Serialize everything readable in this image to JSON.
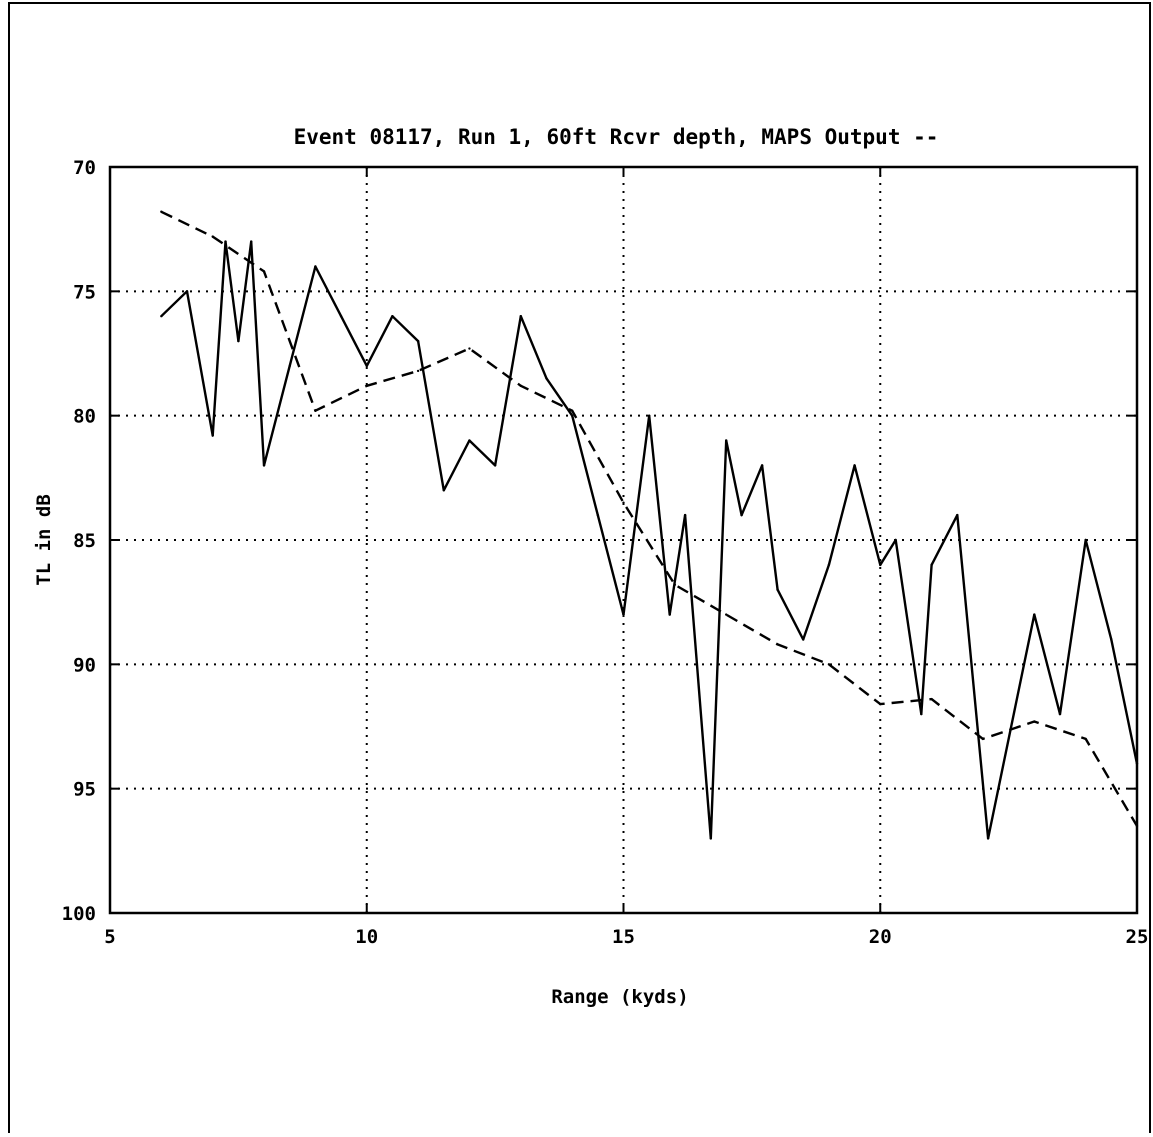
{
  "chart_data": {
    "type": "line",
    "title": "Event 08117, Run 1, 60ft Rcvr depth, MAPS Output --",
    "xlabel": "Range (kyds)",
    "ylabel": "TL in dB",
    "xlim": [
      5,
      25
    ],
    "ylim": [
      70,
      100
    ],
    "y_inverted": true,
    "grid": true,
    "x_ticks": [
      5,
      10,
      15,
      20,
      25
    ],
    "x_tick_labels": [
      "5",
      "10",
      "15",
      "20",
      "25"
    ],
    "y_ticks": [
      70,
      75,
      80,
      85,
      90,
      95,
      100
    ],
    "y_tick_labels": [
      "70",
      "75",
      "80",
      "85",
      "90",
      "95",
      "100"
    ],
    "series": [
      {
        "style": "solid",
        "x": [
          6.0,
          6.5,
          7.0,
          7.25,
          7.5,
          7.75,
          8.0,
          8.5,
          9.0,
          9.5,
          10.0,
          10.5,
          11.0,
          11.5,
          12.0,
          12.5,
          13.0,
          13.5,
          14.0,
          14.5,
          15.0,
          15.5,
          15.9,
          16.2,
          16.7,
          17.0,
          17.3,
          17.7,
          18.0,
          18.5,
          19.0,
          19.5,
          20.0,
          20.3,
          20.8,
          21.0,
          21.5,
          22.1,
          23.0,
          23.5,
          24.0,
          24.5,
          25.0
        ],
        "y": [
          76.0,
          75.0,
          80.8,
          73.0,
          77.0,
          73.0,
          82.0,
          78.0,
          74.0,
          76.0,
          78.0,
          76.0,
          77.0,
          83.0,
          81.0,
          82.0,
          76.0,
          78.5,
          80.0,
          84.0,
          88.0,
          80.0,
          88.0,
          84.0,
          97.0,
          81.0,
          84.0,
          82.0,
          87.0,
          89.0,
          86.0,
          82.0,
          86.0,
          85.0,
          92.0,
          86.0,
          84.0,
          97.0,
          88.0,
          92.0,
          85.0,
          89.0,
          94.0
        ]
      },
      {
        "style": "dashed",
        "x": [
          6.0,
          7.0,
          8.0,
          9.0,
          10.0,
          11.0,
          12.0,
          13.0,
          14.0,
          15.0,
          16.0,
          17.0,
          18.0,
          19.0,
          20.0,
          21.0,
          22.0,
          23.0,
          24.0,
          25.0
        ],
        "y": [
          71.8,
          72.8,
          74.2,
          79.8,
          78.8,
          78.2,
          77.3,
          78.8,
          79.8,
          83.5,
          86.8,
          88.0,
          89.2,
          90.0,
          91.6,
          91.4,
          93.0,
          92.3,
          93.0,
          96.5
        ]
      }
    ]
  }
}
